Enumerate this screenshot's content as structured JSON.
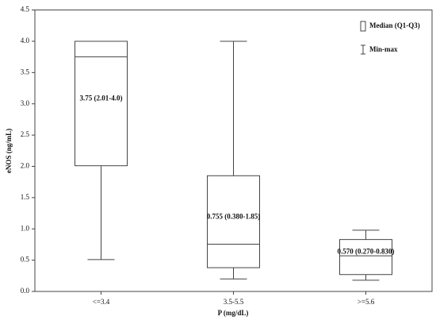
{
  "chart_data": {
    "type": "box",
    "x_label": "P (mg/dL)",
    "y_label": "eNOS (ng/mL)",
    "categories": [
      "<=3.4",
      "3.5-5.5",
      ">=5.6"
    ],
    "min": [
      0.51,
      0.2,
      0.18
    ],
    "q1": [
      2.01,
      0.38,
      0.27
    ],
    "median": [
      3.75,
      0.755,
      0.57
    ],
    "q3": [
      4.0,
      1.85,
      0.83
    ],
    "max": [
      4.0,
      4.0,
      0.98
    ],
    "value_labels": [
      "3.75 (2.01-4.0)",
      "0.755 (0.380-1.85)",
      "0.570 (0.270-0.830)"
    ],
    "legend": [
      "Median (Q1-Q3)",
      "Min-max"
    ],
    "legend_position": "upper right",
    "color": "#444444",
    "ylim": [
      0,
      4.5
    ],
    "yticks": [
      {
        "value": 0,
        "label": "0.0"
      },
      0.5,
      {
        "value": 1,
        "label": "1.0"
      },
      1.5,
      {
        "value": 2,
        "label": "2.0"
      },
      2.5,
      {
        "value": 3,
        "label": "3.0"
      },
      3.5,
      {
        "value": 4,
        "label": "4.0"
      },
      4.5
    ]
  }
}
